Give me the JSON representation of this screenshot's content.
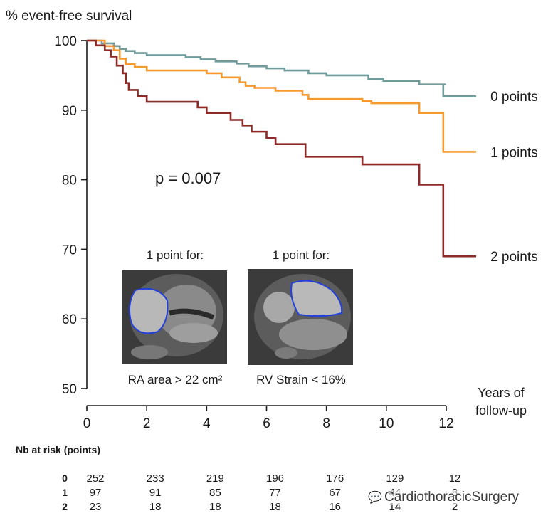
{
  "chart_data": {
    "type": "line",
    "step": true,
    "ylabel": "% event-free survival",
    "xlabel": "Years of follow-up",
    "xlabel_lines": [
      "Years of",
      "follow-up"
    ],
    "xlim": [
      0,
      12
    ],
    "ylim": [
      50,
      100
    ],
    "x_ticks": [
      0,
      2,
      4,
      6,
      8,
      10,
      12
    ],
    "y_ticks": [
      50,
      60,
      70,
      80,
      90,
      100
    ],
    "grid": false,
    "annotation": "p = 0.007",
    "series": [
      {
        "name": "0 points",
        "color": "#6f9b9b",
        "points": [
          [
            0,
            100
          ],
          [
            0.5,
            99.6
          ],
          [
            0.9,
            99.2
          ],
          [
            1.1,
            98.8
          ],
          [
            1.3,
            98.5
          ],
          [
            1.6,
            98.2
          ],
          [
            2.0,
            97.9
          ],
          [
            3.3,
            97.6
          ],
          [
            3.8,
            97.3
          ],
          [
            4.3,
            97.0
          ],
          [
            5.0,
            96.7
          ],
          [
            5.4,
            96.3
          ],
          [
            6.0,
            96.0
          ],
          [
            6.6,
            95.7
          ],
          [
            7.4,
            95.3
          ],
          [
            8.0,
            95.0
          ],
          [
            9.4,
            94.5
          ],
          [
            9.9,
            94.2
          ],
          [
            11.1,
            93.7
          ],
          [
            12.0,
            93.7
          ]
        ],
        "final_drop": [
          11.9,
          92.0
        ],
        "extend_to": 13.0
      },
      {
        "name": "1 points",
        "color": "#f59a2e",
        "points": [
          [
            0,
            100
          ],
          [
            0.6,
            99.2
          ],
          [
            0.9,
            98.6
          ],
          [
            1.1,
            97.4
          ],
          [
            1.3,
            96.6
          ],
          [
            1.6,
            96.2
          ],
          [
            2.0,
            95.7
          ],
          [
            4.0,
            95.3
          ],
          [
            4.5,
            94.7
          ],
          [
            5.1,
            94.0
          ],
          [
            5.3,
            93.5
          ],
          [
            5.6,
            93.2
          ],
          [
            6.3,
            92.8
          ],
          [
            7.2,
            92.2
          ],
          [
            7.4,
            91.6
          ],
          [
            9.2,
            91.3
          ],
          [
            9.5,
            91.0
          ],
          [
            11.1,
            89.6
          ]
        ],
        "final_drop": [
          11.9,
          84.0
        ],
        "extend_to": 13.0
      },
      {
        "name": "2 points",
        "color": "#8b2a26",
        "points": [
          [
            0,
            100
          ],
          [
            0.3,
            99.3
          ],
          [
            0.6,
            98.6
          ],
          [
            0.8,
            97.7
          ],
          [
            1.0,
            96.4
          ],
          [
            1.2,
            95.3
          ],
          [
            1.3,
            93.9
          ],
          [
            1.4,
            92.9
          ],
          [
            1.7,
            92.0
          ],
          [
            2.0,
            91.2
          ],
          [
            3.7,
            90.4
          ],
          [
            4.0,
            89.6
          ],
          [
            4.8,
            88.6
          ],
          [
            5.2,
            87.8
          ],
          [
            5.5,
            86.9
          ],
          [
            6.0,
            86.0
          ],
          [
            6.3,
            85.1
          ],
          [
            7.3,
            83.3
          ],
          [
            9.2,
            82.2
          ],
          [
            11.1,
            79.3
          ]
        ],
        "final_drop": [
          11.9,
          69.0
        ],
        "extend_to": 13.0
      }
    ],
    "insets": [
      {
        "title": "1 point for:",
        "caption": "RA area > 22 cm²",
        "icon": "mri-4-chamber-ra-outline"
      },
      {
        "title": "1 point for:",
        "caption": "RV Strain < 16%",
        "icon": "mri-4-chamber-rv-outline"
      }
    ]
  },
  "risk_table": {
    "title": "Nb at risk (points)",
    "times": [
      0,
      2,
      4,
      6,
      8,
      10,
      12
    ],
    "rows": [
      {
        "label": "0",
        "values": [
          "252",
          "233",
          "219",
          "196",
          "176",
          "129",
          "12"
        ]
      },
      {
        "label": "1",
        "values": [
          "97",
          "91",
          "85",
          "77",
          "67",
          "44",
          "8"
        ]
      },
      {
        "label": "2",
        "values": [
          "23",
          "18",
          "18",
          "18",
          "16",
          "14",
          "2"
        ]
      }
    ]
  },
  "watermark": {
    "text": "CardiothoracicSurgery",
    "icon": "wechat-icon"
  }
}
